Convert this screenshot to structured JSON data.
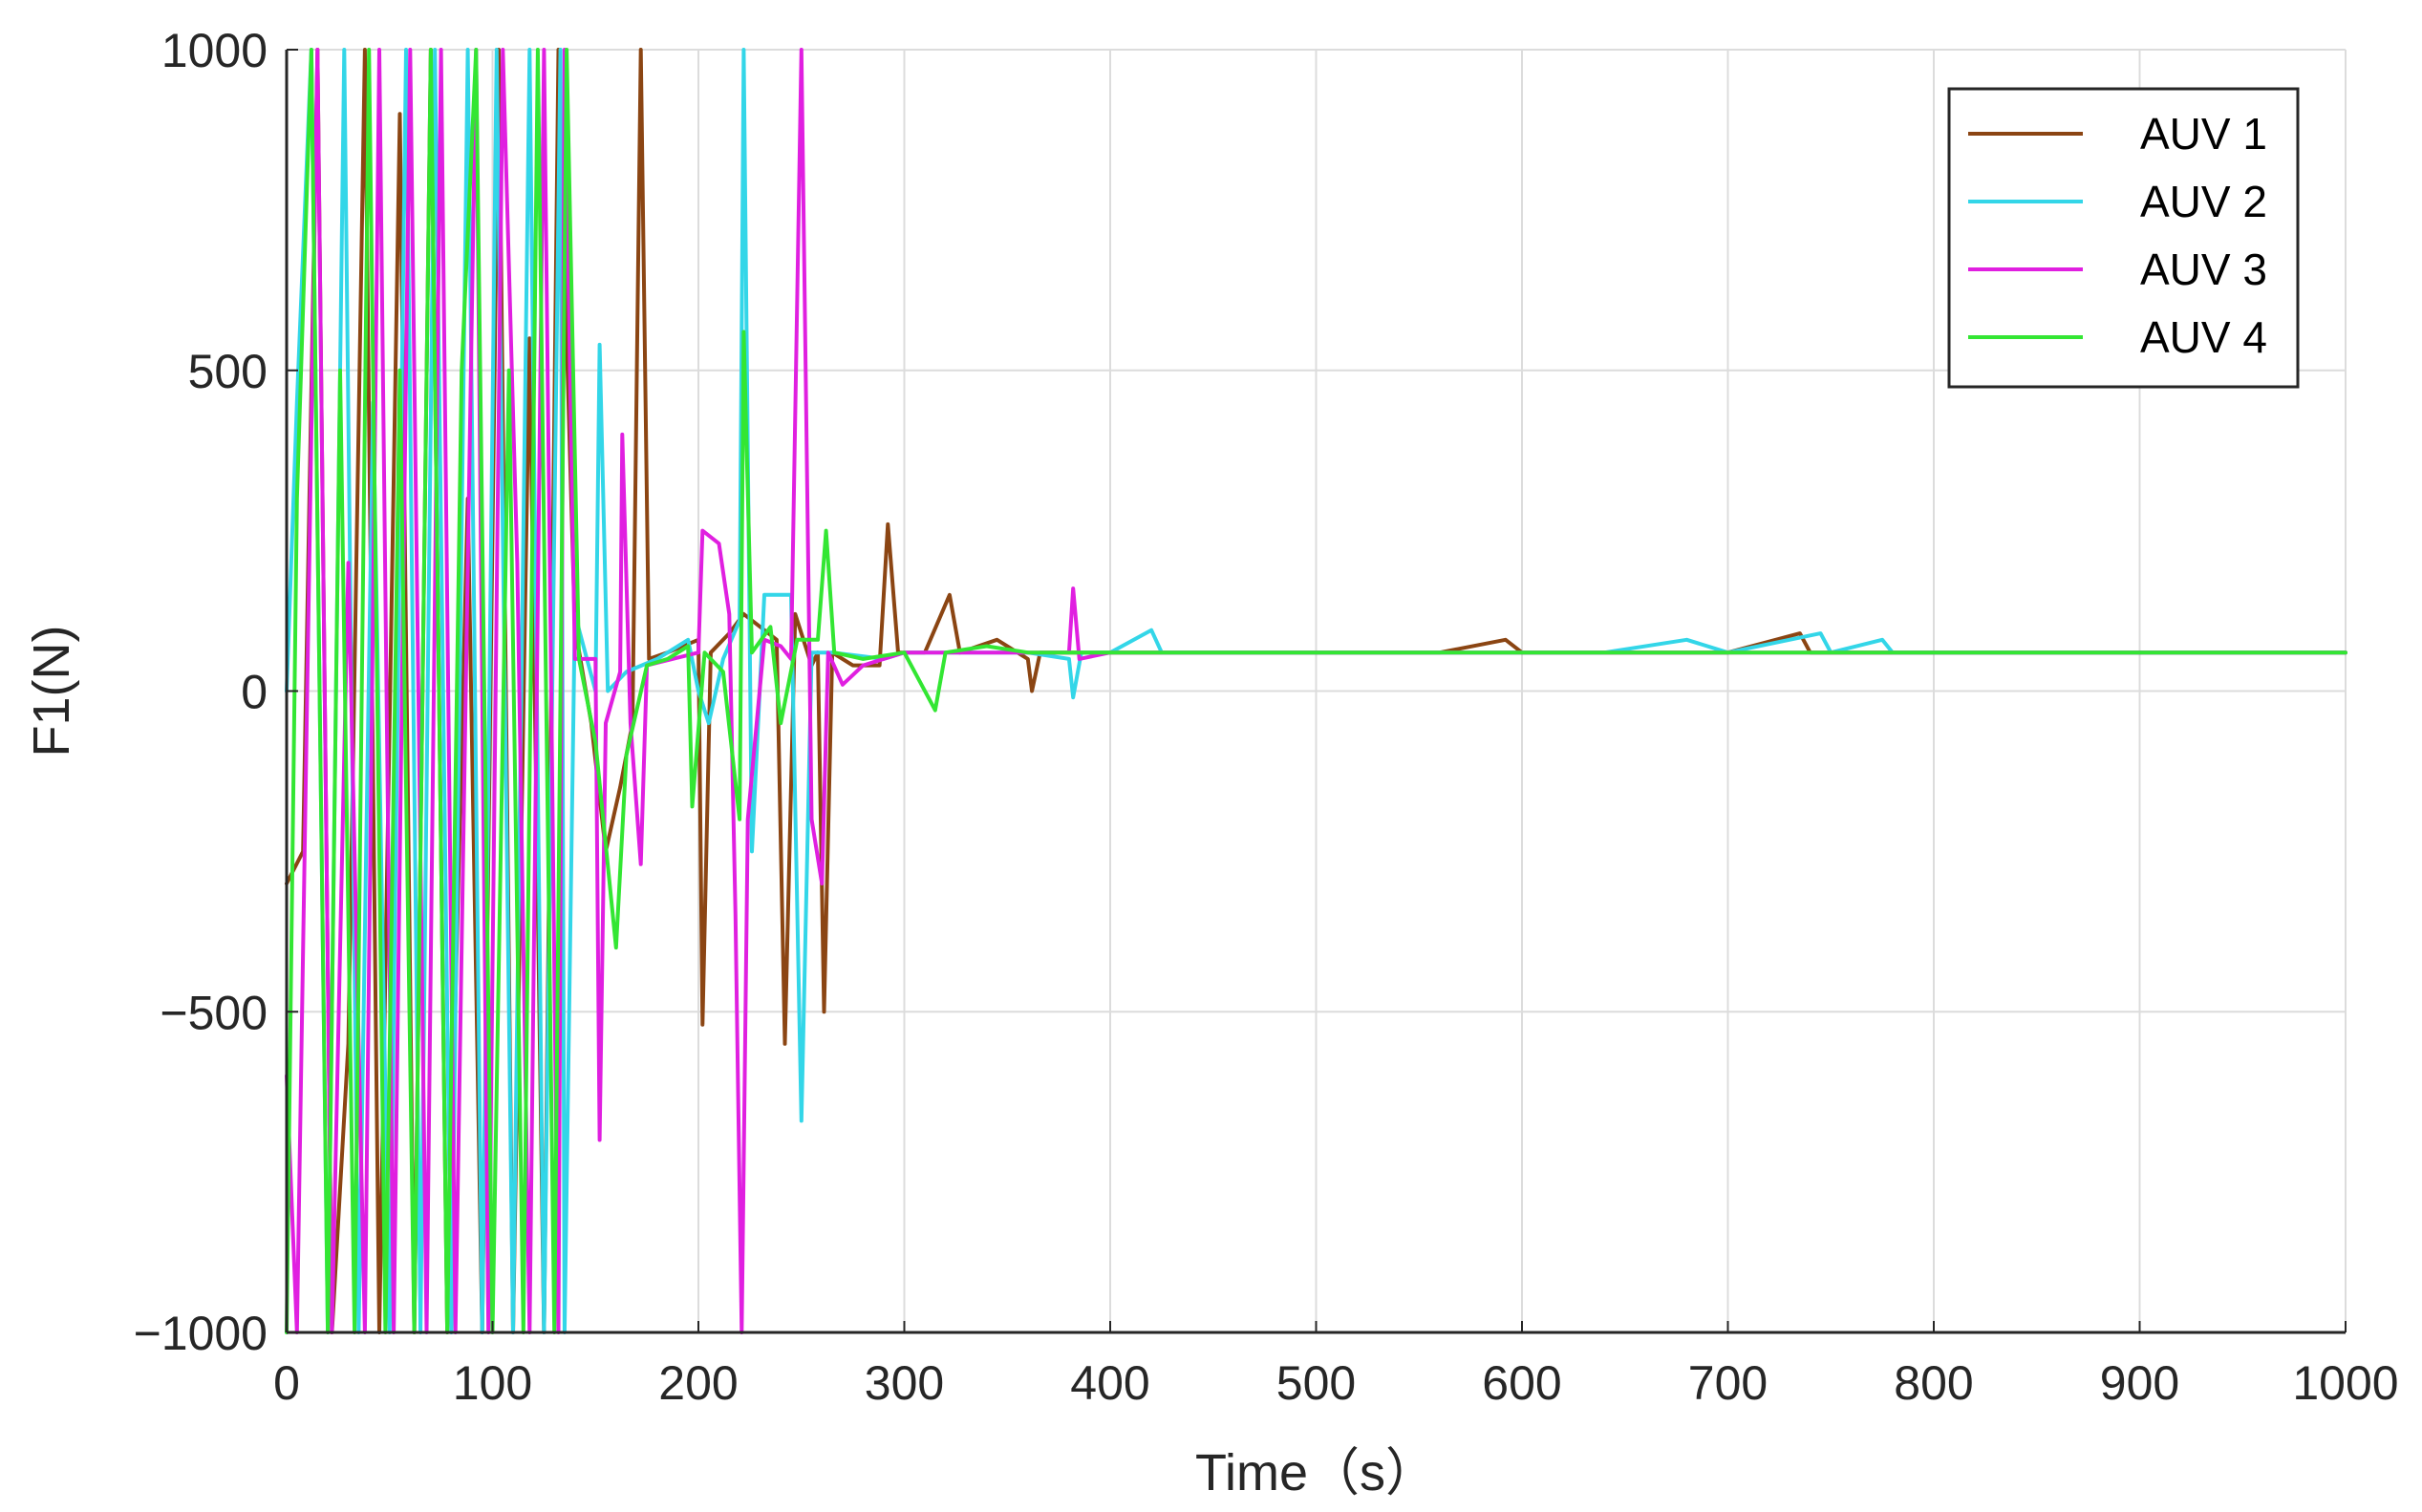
{
  "chart_data": {
    "type": "line",
    "xlabel": "Time（s）",
    "ylabel": "F1(N)",
    "xlim": [
      0,
      1000
    ],
    "ylim": [
      -1000,
      1000
    ],
    "xticks": [
      "0",
      "100",
      "200",
      "300",
      "400",
      "500",
      "600",
      "700",
      "800",
      "900",
      "1000"
    ],
    "yticks": [
      "−1000",
      "−500",
      "0",
      "500",
      "1000"
    ],
    "grid": true,
    "legend_position": "top-right",
    "series": [
      {
        "name": "AUV 1",
        "color": "#8B4513",
        "points": [
          [
            0,
            -300
          ],
          [
            8,
            -250
          ],
          [
            15,
            1000
          ],
          [
            22,
            -1000
          ],
          [
            30,
            -550
          ],
          [
            38,
            1000
          ],
          [
            45,
            -1000
          ],
          [
            55,
            900
          ],
          [
            62,
            -1000
          ],
          [
            70,
            1000
          ],
          [
            78,
            -1000
          ],
          [
            88,
            300
          ],
          [
            95,
            -1000
          ],
          [
            103,
            1000
          ],
          [
            110,
            -1000
          ],
          [
            118,
            550
          ],
          [
            125,
            -1000
          ],
          [
            132,
            1000
          ],
          [
            140,
            100
          ],
          [
            148,
            -50
          ],
          [
            155,
            -250
          ],
          [
            162,
            -150
          ],
          [
            168,
            -50
          ],
          [
            172,
            1000
          ],
          [
            176,
            50
          ],
          [
            185,
            60
          ],
          [
            200,
            80
          ],
          [
            202,
            -520
          ],
          [
            206,
            60
          ],
          [
            215,
            90
          ],
          [
            222,
            120
          ],
          [
            230,
            100
          ],
          [
            238,
            80
          ],
          [
            242,
            -550
          ],
          [
            247,
            120
          ],
          [
            255,
            40
          ],
          [
            258,
            60
          ],
          [
            261,
            -500
          ],
          [
            265,
            60
          ],
          [
            275,
            40
          ],
          [
            288,
            40
          ],
          [
            292,
            260
          ],
          [
            297,
            60
          ],
          [
            310,
            60
          ],
          [
            322,
            150
          ],
          [
            327,
            60
          ],
          [
            345,
            80
          ],
          [
            360,
            50
          ],
          [
            362,
            0
          ],
          [
            366,
            60
          ],
          [
            400,
            60
          ],
          [
            450,
            60
          ],
          [
            500,
            60
          ],
          [
            560,
            60
          ],
          [
            592,
            80
          ],
          [
            600,
            60
          ],
          [
            650,
            60
          ],
          [
            700,
            60
          ],
          [
            735,
            90
          ],
          [
            740,
            60
          ],
          [
            800,
            60
          ],
          [
            850,
            60
          ],
          [
            900,
            60
          ],
          [
            950,
            60
          ],
          [
            1000,
            60
          ]
        ]
      },
      {
        "name": "AUV 2",
        "color": "#33D6E8",
        "points": [
          [
            0,
            0
          ],
          [
            5,
            450
          ],
          [
            12,
            1000
          ],
          [
            20,
            -1000
          ],
          [
            28,
            1000
          ],
          [
            35,
            -1000
          ],
          [
            42,
            450
          ],
          [
            50,
            -1000
          ],
          [
            58,
            1000
          ],
          [
            65,
            -1000
          ],
          [
            72,
            1000
          ],
          [
            80,
            -1000
          ],
          [
            88,
            1000
          ],
          [
            95,
            -1000
          ],
          [
            102,
            1000
          ],
          [
            110,
            -1000
          ],
          [
            118,
            1000
          ],
          [
            125,
            -1000
          ],
          [
            133,
            1000
          ],
          [
            135,
            -1000
          ],
          [
            140,
            120
          ],
          [
            150,
            0
          ],
          [
            152,
            540
          ],
          [
            156,
            0
          ],
          [
            165,
            30
          ],
          [
            180,
            50
          ],
          [
            195,
            80
          ],
          [
            200,
            0
          ],
          [
            205,
            -50
          ],
          [
            212,
            50
          ],
          [
            220,
            110
          ],
          [
            222,
            1000
          ],
          [
            226,
            -250
          ],
          [
            232,
            150
          ],
          [
            245,
            150
          ],
          [
            250,
            -670
          ],
          [
            255,
            60
          ],
          [
            265,
            60
          ],
          [
            290,
            50
          ],
          [
            300,
            60
          ],
          [
            330,
            60
          ],
          [
            360,
            60
          ],
          [
            380,
            50
          ],
          [
            382,
            -10
          ],
          [
            386,
            60
          ],
          [
            400,
            60
          ],
          [
            420,
            95
          ],
          [
            425,
            60
          ],
          [
            460,
            60
          ],
          [
            500,
            60
          ],
          [
            560,
            60
          ],
          [
            600,
            60
          ],
          [
            640,
            60
          ],
          [
            680,
            80
          ],
          [
            700,
            60
          ],
          [
            745,
            90
          ],
          [
            750,
            60
          ],
          [
            775,
            80
          ],
          [
            780,
            60
          ],
          [
            850,
            60
          ],
          [
            900,
            60
          ],
          [
            950,
            60
          ],
          [
            1000,
            60
          ]
        ]
      },
      {
        "name": "AUV 3",
        "color": "#E01FE0",
        "points": [
          [
            0,
            -600
          ],
          [
            5,
            -1000
          ],
          [
            15,
            1000
          ],
          [
            22,
            -1000
          ],
          [
            30,
            200
          ],
          [
            38,
            -1000
          ],
          [
            45,
            1000
          ],
          [
            52,
            -1000
          ],
          [
            60,
            1000
          ],
          [
            68,
            -1000
          ],
          [
            75,
            1000
          ],
          [
            82,
            -1000
          ],
          [
            92,
            1000
          ],
          [
            98,
            -1000
          ],
          [
            105,
            1000
          ],
          [
            112,
            200
          ],
          [
            118,
            -1000
          ],
          [
            125,
            1000
          ],
          [
            132,
            -1000
          ],
          [
            135,
            1000
          ],
          [
            140,
            50
          ],
          [
            150,
            50
          ],
          [
            152,
            -700
          ],
          [
            155,
            -50
          ],
          [
            162,
            30
          ],
          [
            163,
            400
          ],
          [
            167,
            -50
          ],
          [
            172,
            -270
          ],
          [
            175,
            40
          ],
          [
            200,
            60
          ],
          [
            202,
            250
          ],
          [
            210,
            230
          ],
          [
            215,
            120
          ],
          [
            218,
            -350
          ],
          [
            221,
            -1000
          ],
          [
            224,
            -200
          ],
          [
            232,
            80
          ],
          [
            240,
            70
          ],
          [
            245,
            50
          ],
          [
            250,
            1000
          ],
          [
            255,
            -200
          ],
          [
            260,
            -300
          ],
          [
            263,
            60
          ],
          [
            270,
            10
          ],
          [
            280,
            40
          ],
          [
            300,
            60
          ],
          [
            320,
            60
          ],
          [
            345,
            60
          ],
          [
            380,
            60
          ],
          [
            382,
            160
          ],
          [
            385,
            50
          ],
          [
            400,
            60
          ],
          [
            450,
            60
          ],
          [
            500,
            60
          ],
          [
            550,
            60
          ],
          [
            600,
            60
          ],
          [
            650,
            60
          ],
          [
            700,
            60
          ],
          [
            750,
            60
          ],
          [
            800,
            60
          ],
          [
            850,
            60
          ],
          [
            900,
            60
          ],
          [
            950,
            60
          ],
          [
            1000,
            60
          ]
        ]
      },
      {
        "name": "AUV 4",
        "color": "#33E633",
        "points": [
          [
            0,
            -1000
          ],
          [
            5,
            300
          ],
          [
            12,
            1000
          ],
          [
            20,
            -1000
          ],
          [
            26,
            500
          ],
          [
            33,
            -1000
          ],
          [
            40,
            1000
          ],
          [
            48,
            -1000
          ],
          [
            55,
            500
          ],
          [
            62,
            -1000
          ],
          [
            70,
            1000
          ],
          [
            78,
            -1000
          ],
          [
            85,
            500
          ],
          [
            92,
            1000
          ],
          [
            100,
            -1000
          ],
          [
            108,
            500
          ],
          [
            115,
            -1000
          ],
          [
            122,
            1000
          ],
          [
            130,
            -1000
          ],
          [
            136,
            1000
          ],
          [
            142,
            50
          ],
          [
            150,
            -80
          ],
          [
            160,
            -400
          ],
          [
            165,
            -100
          ],
          [
            175,
            40
          ],
          [
            185,
            50
          ],
          [
            195,
            70
          ],
          [
            197,
            -180
          ],
          [
            203,
            60
          ],
          [
            212,
            30
          ],
          [
            220,
            -200
          ],
          [
            222,
            560
          ],
          [
            226,
            60
          ],
          [
            235,
            100
          ],
          [
            240,
            -50
          ],
          [
            248,
            80
          ],
          [
            258,
            80
          ],
          [
            262,
            250
          ],
          [
            266,
            60
          ],
          [
            280,
            50
          ],
          [
            300,
            60
          ],
          [
            315,
            -30
          ],
          [
            320,
            60
          ],
          [
            340,
            70
          ],
          [
            360,
            60
          ],
          [
            400,
            60
          ],
          [
            450,
            60
          ],
          [
            500,
            60
          ],
          [
            550,
            60
          ],
          [
            600,
            60
          ],
          [
            650,
            60
          ],
          [
            700,
            60
          ],
          [
            750,
            60
          ],
          [
            800,
            60
          ],
          [
            850,
            60
          ],
          [
            900,
            60
          ],
          [
            950,
            60
          ],
          [
            1000,
            60
          ]
        ]
      }
    ]
  }
}
